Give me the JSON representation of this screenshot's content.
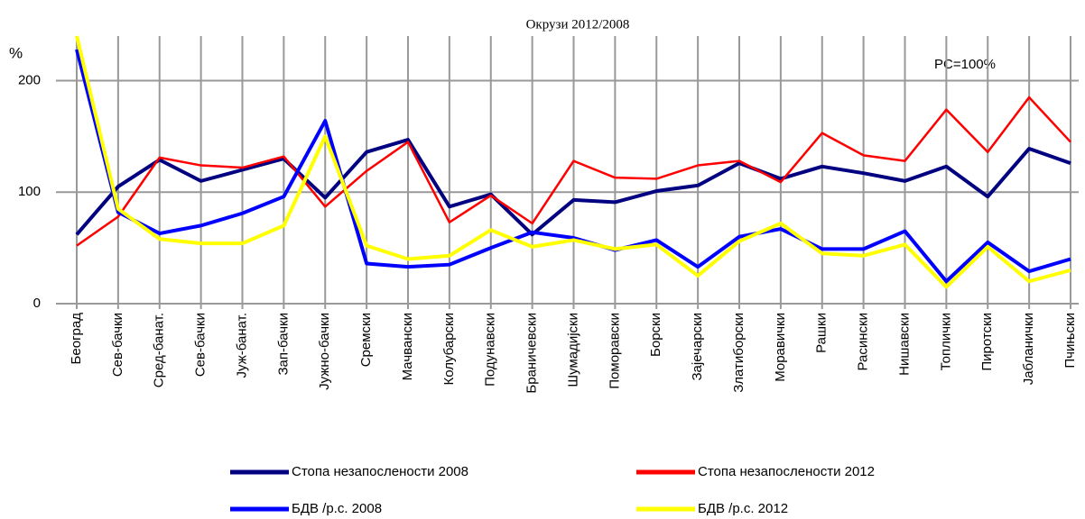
{
  "chart_data": {
    "type": "line",
    "title": "Окрузи  2012/2008",
    "y_label": "%",
    "annotation": "PC=100%",
    "categories": [
      "Београд",
      "Сев-бачки",
      "Сред-банат.",
      "Сев-бачки",
      "Јуж-банат.",
      "Зап-бачки",
      "Јужно-бачки",
      "Сремски",
      "Мачвански",
      "Колубарски",
      "Подунавски",
      "Браничевски",
      "Шумадијски",
      "Поморавски",
      "Борски",
      "Зајечарски",
      "Златиборски",
      "Моравички",
      "Рашки",
      "Расински",
      "Нишавски",
      "Топлички",
      "Пиротски",
      "Јабланички",
      "Пчињски"
    ],
    "series": [
      {
        "name": "Стопа незапослености 2008",
        "color": "#000080",
        "width": 4,
        "values": [
          62,
          105,
          129,
          110,
          120,
          130,
          95,
          136,
          147,
          87,
          98,
          62,
          93,
          91,
          101,
          106,
          126,
          112,
          123,
          117,
          110,
          123,
          96,
          139,
          126
        ]
      },
      {
        "name": "Стопа незапослености 2012",
        "color": "#ff0000",
        "width": 2.5,
        "values": [
          52,
          78,
          131,
          124,
          122,
          132,
          87,
          119,
          145,
          73,
          97,
          72,
          128,
          113,
          112,
          124,
          128,
          109,
          153,
          133,
          128,
          174,
          136,
          185,
          145
        ]
      },
      {
        "name": "БДВ /р.с. 2008",
        "color": "#0000ff",
        "width": 4,
        "values": [
          228,
          82,
          63,
          70,
          81,
          96,
          164,
          36,
          33,
          35,
          50,
          64,
          59,
          48,
          57,
          33,
          60,
          67,
          49,
          49,
          65,
          20,
          55,
          29,
          40
        ]
      },
      {
        "name": "БДВ /р.с. 2012",
        "color": "#ffff00",
        "width": 4,
        "values": [
          240,
          85,
          58,
          54,
          54,
          70,
          150,
          52,
          40,
          43,
          66,
          51,
          57,
          49,
          53,
          25,
          56,
          72,
          45,
          43,
          53,
          15,
          51,
          20,
          30
        ]
      }
    ],
    "ylim": [
      0,
      240
    ],
    "yticks": [
      0,
      100,
      200
    ],
    "grid": true
  }
}
